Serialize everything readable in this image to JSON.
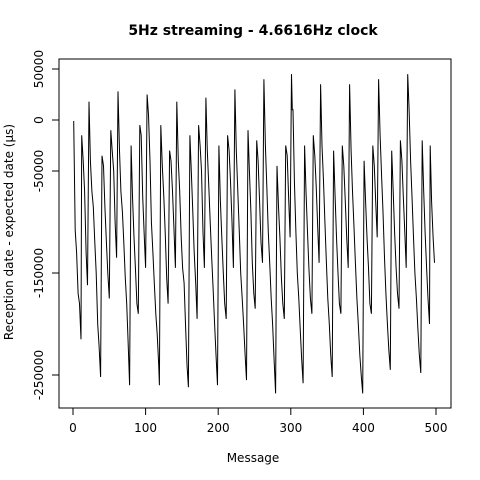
{
  "chart_data": {
    "type": "line",
    "title": "5Hz streaming - 4.6616Hz clock",
    "xlabel": "Message",
    "ylabel": "Reception date - expected date (µs)",
    "xlim": [
      0,
      500
    ],
    "ylim": [
      -265000,
      50000
    ],
    "x_ticks": [
      0,
      100,
      200,
      300,
      400,
      500
    ],
    "y_ticks": [
      50000,
      0,
      -50000,
      -150000,
      -250000
    ],
    "grid": false,
    "line_color": "#000000",
    "series": [
      {
        "values": [
          {
            "x": 1,
            "y": -1000
          },
          {
            "x": 3,
            "y": -108000
          },
          {
            "x": 5,
            "y": -130000
          },
          {
            "x": 7,
            "y": -170000
          },
          {
            "x": 9,
            "y": -180000
          },
          {
            "x": 11,
            "y": -215000
          },
          {
            "x": 12,
            "y": -15000
          },
          {
            "x": 14,
            "y": -40000
          },
          {
            "x": 16,
            "y": -70000
          },
          {
            "x": 18,
            "y": -130000
          },
          {
            "x": 20,
            "y": -162000
          },
          {
            "x": 22,
            "y": 18000
          },
          {
            "x": 24,
            "y": -40000
          },
          {
            "x": 26,
            "y": -70000
          },
          {
            "x": 28,
            "y": -85000
          },
          {
            "x": 30,
            "y": -120000
          },
          {
            "x": 32,
            "y": -150000
          },
          {
            "x": 34,
            "y": -200000
          },
          {
            "x": 36,
            "y": -222000
          },
          {
            "x": 38,
            "y": -252000
          },
          {
            "x": 40,
            "y": -35000
          },
          {
            "x": 42,
            "y": -45000
          },
          {
            "x": 44,
            "y": -85000
          },
          {
            "x": 46,
            "y": -120000
          },
          {
            "x": 48,
            "y": -150000
          },
          {
            "x": 50,
            "y": -175000
          },
          {
            "x": 52,
            "y": -10000
          },
          {
            "x": 54,
            "y": -30000
          },
          {
            "x": 56,
            "y": -50000
          },
          {
            "x": 58,
            "y": -100000
          },
          {
            "x": 60,
            "y": -135000
          },
          {
            "x": 62,
            "y": 28000
          },
          {
            "x": 64,
            "y": -30000
          },
          {
            "x": 66,
            "y": -70000
          },
          {
            "x": 68,
            "y": -90000
          },
          {
            "x": 70,
            "y": -120000
          },
          {
            "x": 72,
            "y": -155000
          },
          {
            "x": 74,
            "y": -180000
          },
          {
            "x": 76,
            "y": -220000
          },
          {
            "x": 78,
            "y": -260000
          },
          {
            "x": 80,
            "y": -25000
          },
          {
            "x": 82,
            "y": -75000
          },
          {
            "x": 84,
            "y": -115000
          },
          {
            "x": 86,
            "y": -145000
          },
          {
            "x": 88,
            "y": -180000
          },
          {
            "x": 90,
            "y": -190000
          },
          {
            "x": 92,
            "y": -5000
          },
          {
            "x": 94,
            "y": -15000
          },
          {
            "x": 96,
            "y": -75000
          },
          {
            "x": 98,
            "y": -110000
          },
          {
            "x": 100,
            "y": -145000
          },
          {
            "x": 102,
            "y": 25000
          },
          {
            "x": 104,
            "y": 5000
          },
          {
            "x": 106,
            "y": -40000
          },
          {
            "x": 108,
            "y": -100000
          },
          {
            "x": 110,
            "y": -130000
          },
          {
            "x": 112,
            "y": -160000
          },
          {
            "x": 114,
            "y": -190000
          },
          {
            "x": 116,
            "y": -210000
          },
          {
            "x": 118,
            "y": -240000
          },
          {
            "x": 119,
            "y": -260000
          },
          {
            "x": 121,
            "y": -5000
          },
          {
            "x": 123,
            "y": -45000
          },
          {
            "x": 125,
            "y": -75000
          },
          {
            "x": 127,
            "y": -110000
          },
          {
            "x": 129,
            "y": -155000
          },
          {
            "x": 131,
            "y": -180000
          },
          {
            "x": 133,
            "y": -30000
          },
          {
            "x": 135,
            "y": -40000
          },
          {
            "x": 137,
            "y": -70000
          },
          {
            "x": 139,
            "y": -105000
          },
          {
            "x": 141,
            "y": -145000
          },
          {
            "x": 143,
            "y": 18000
          },
          {
            "x": 145,
            "y": -40000
          },
          {
            "x": 147,
            "y": -70000
          },
          {
            "x": 149,
            "y": -115000
          },
          {
            "x": 151,
            "y": -145000
          },
          {
            "x": 153,
            "y": -160000
          },
          {
            "x": 155,
            "y": -200000
          },
          {
            "x": 157,
            "y": -240000
          },
          {
            "x": 159,
            "y": -262000
          },
          {
            "x": 161,
            "y": -15000
          },
          {
            "x": 163,
            "y": -50000
          },
          {
            "x": 165,
            "y": -90000
          },
          {
            "x": 167,
            "y": -130000
          },
          {
            "x": 169,
            "y": -160000
          },
          {
            "x": 171,
            "y": -195000
          },
          {
            "x": 173,
            "y": -5000
          },
          {
            "x": 175,
            "y": -25000
          },
          {
            "x": 177,
            "y": -50000
          },
          {
            "x": 179,
            "y": -110000
          },
          {
            "x": 181,
            "y": -145000
          },
          {
            "x": 183,
            "y": 22000
          },
          {
            "x": 185,
            "y": -30000
          },
          {
            "x": 187,
            "y": -65000
          },
          {
            "x": 189,
            "y": -100000
          },
          {
            "x": 191,
            "y": -135000
          },
          {
            "x": 193,
            "y": -165000
          },
          {
            "x": 195,
            "y": -200000
          },
          {
            "x": 197,
            "y": -230000
          },
          {
            "x": 199,
            "y": -260000
          },
          {
            "x": 201,
            "y": -25000
          },
          {
            "x": 203,
            "y": -80000
          },
          {
            "x": 205,
            "y": -115000
          },
          {
            "x": 207,
            "y": -150000
          },
          {
            "x": 209,
            "y": -180000
          },
          {
            "x": 211,
            "y": -195000
          },
          {
            "x": 213,
            "y": -15000
          },
          {
            "x": 215,
            "y": -30000
          },
          {
            "x": 217,
            "y": -60000
          },
          {
            "x": 219,
            "y": -100000
          },
          {
            "x": 221,
            "y": -145000
          },
          {
            "x": 223,
            "y": 30000
          },
          {
            "x": 225,
            "y": -30000
          },
          {
            "x": 227,
            "y": -70000
          },
          {
            "x": 229,
            "y": -110000
          },
          {
            "x": 231,
            "y": -150000
          },
          {
            "x": 233,
            "y": -175000
          },
          {
            "x": 235,
            "y": -200000
          },
          {
            "x": 237,
            "y": -230000
          },
          {
            "x": 239,
            "y": -255000
          },
          {
            "x": 241,
            "y": -10000
          },
          {
            "x": 243,
            "y": -50000
          },
          {
            "x": 245,
            "y": -90000
          },
          {
            "x": 247,
            "y": -140000
          },
          {
            "x": 249,
            "y": -170000
          },
          {
            "x": 251,
            "y": -185000
          },
          {
            "x": 253,
            "y": -20000
          },
          {
            "x": 255,
            "y": -40000
          },
          {
            "x": 257,
            "y": -80000
          },
          {
            "x": 259,
            "y": -120000
          },
          {
            "x": 261,
            "y": -140000
          },
          {
            "x": 263,
            "y": 40000
          },
          {
            "x": 265,
            "y": -25000
          },
          {
            "x": 267,
            "y": -65000
          },
          {
            "x": 269,
            "y": -110000
          },
          {
            "x": 271,
            "y": -140000
          },
          {
            "x": 273,
            "y": -175000
          },
          {
            "x": 275,
            "y": -200000
          },
          {
            "x": 277,
            "y": -235000
          },
          {
            "x": 279,
            "y": -268000
          },
          {
            "x": 281,
            "y": -45000
          },
          {
            "x": 283,
            "y": -85000
          },
          {
            "x": 285,
            "y": -115000
          },
          {
            "x": 287,
            "y": -155000
          },
          {
            "x": 289,
            "y": -180000
          },
          {
            "x": 291,
            "y": -195000
          },
          {
            "x": 293,
            "y": -25000
          },
          {
            "x": 295,
            "y": -35000
          },
          {
            "x": 297,
            "y": -75000
          },
          {
            "x": 299,
            "y": -115000
          },
          {
            "x": 301,
            "y": 45000
          },
          {
            "x": 302,
            "y": 10000
          },
          {
            "x": 303,
            "y": 10000
          },
          {
            "x": 305,
            "y": -60000
          },
          {
            "x": 307,
            "y": -110000
          },
          {
            "x": 309,
            "y": -150000
          },
          {
            "x": 311,
            "y": -175000
          },
          {
            "x": 313,
            "y": -205000
          },
          {
            "x": 315,
            "y": -235000
          },
          {
            "x": 317,
            "y": -258000
          },
          {
            "x": 319,
            "y": -25000
          },
          {
            "x": 321,
            "y": -70000
          },
          {
            "x": 323,
            "y": -110000
          },
          {
            "x": 325,
            "y": -145000
          },
          {
            "x": 327,
            "y": -175000
          },
          {
            "x": 329,
            "y": -190000
          },
          {
            "x": 331,
            "y": -15000
          },
          {
            "x": 333,
            "y": -35000
          },
          {
            "x": 335,
            "y": -65000
          },
          {
            "x": 337,
            "y": -105000
          },
          {
            "x": 339,
            "y": -140000
          },
          {
            "x": 341,
            "y": 35000
          },
          {
            "x": 343,
            "y": -25000
          },
          {
            "x": 345,
            "y": -60000
          },
          {
            "x": 347,
            "y": -100000
          },
          {
            "x": 349,
            "y": -140000
          },
          {
            "x": 351,
            "y": -175000
          },
          {
            "x": 353,
            "y": -200000
          },
          {
            "x": 355,
            "y": -230000
          },
          {
            "x": 357,
            "y": -252000
          },
          {
            "x": 359,
            "y": -30000
          },
          {
            "x": 361,
            "y": -75000
          },
          {
            "x": 363,
            "y": -115000
          },
          {
            "x": 365,
            "y": -150000
          },
          {
            "x": 367,
            "y": -180000
          },
          {
            "x": 369,
            "y": -190000
          },
          {
            "x": 371,
            "y": -25000
          },
          {
            "x": 373,
            "y": -45000
          },
          {
            "x": 375,
            "y": -80000
          },
          {
            "x": 377,
            "y": -115000
          },
          {
            "x": 379,
            "y": -145000
          },
          {
            "x": 381,
            "y": 35000
          },
          {
            "x": 383,
            "y": -30000
          },
          {
            "x": 385,
            "y": -70000
          },
          {
            "x": 387,
            "y": -105000
          },
          {
            "x": 389,
            "y": -140000
          },
          {
            "x": 391,
            "y": -175000
          },
          {
            "x": 393,
            "y": -200000
          },
          {
            "x": 395,
            "y": -230000
          },
          {
            "x": 397,
            "y": -250000
          },
          {
            "x": 399,
            "y": -268000
          },
          {
            "x": 401,
            "y": -40000
          },
          {
            "x": 403,
            "y": -80000
          },
          {
            "x": 405,
            "y": -115000
          },
          {
            "x": 407,
            "y": -145000
          },
          {
            "x": 409,
            "y": -180000
          },
          {
            "x": 411,
            "y": -190000
          },
          {
            "x": 413,
            "y": -25000
          },
          {
            "x": 415,
            "y": -45000
          },
          {
            "x": 417,
            "y": -80000
          },
          {
            "x": 419,
            "y": -115000
          },
          {
            "x": 421,
            "y": 40000
          },
          {
            "x": 423,
            "y": -15000
          },
          {
            "x": 425,
            "y": -55000
          },
          {
            "x": 427,
            "y": -90000
          },
          {
            "x": 429,
            "y": -135000
          },
          {
            "x": 431,
            "y": -170000
          },
          {
            "x": 433,
            "y": -200000
          },
          {
            "x": 435,
            "y": -225000
          },
          {
            "x": 437,
            "y": -245000
          },
          {
            "x": 439,
            "y": -30000
          },
          {
            "x": 441,
            "y": -70000
          },
          {
            "x": 443,
            "y": -110000
          },
          {
            "x": 445,
            "y": -145000
          },
          {
            "x": 447,
            "y": -170000
          },
          {
            "x": 449,
            "y": -185000
          },
          {
            "x": 451,
            "y": -20000
          },
          {
            "x": 453,
            "y": -40000
          },
          {
            "x": 455,
            "y": -75000
          },
          {
            "x": 457,
            "y": -110000
          },
          {
            "x": 459,
            "y": -145000
          },
          {
            "x": 461,
            "y": 45000
          },
          {
            "x": 463,
            "y": 10000
          },
          {
            "x": 465,
            "y": -40000
          },
          {
            "x": 467,
            "y": -75000
          },
          {
            "x": 469,
            "y": -115000
          },
          {
            "x": 471,
            "y": -150000
          },
          {
            "x": 473,
            "y": -175000
          },
          {
            "x": 475,
            "y": -205000
          },
          {
            "x": 477,
            "y": -230000
          },
          {
            "x": 479,
            "y": -248000
          },
          {
            "x": 481,
            "y": -20000
          },
          {
            "x": 483,
            "y": -70000
          },
          {
            "x": 485,
            "y": -110000
          },
          {
            "x": 487,
            "y": -145000
          },
          {
            "x": 489,
            "y": -175000
          },
          {
            "x": 491,
            "y": -200000
          },
          {
            "x": 492,
            "y": -25000
          },
          {
            "x": 494,
            "y": -80000
          },
          {
            "x": 496,
            "y": -115000
          },
          {
            "x": 498,
            "y": -140000
          }
        ]
      }
    ]
  }
}
